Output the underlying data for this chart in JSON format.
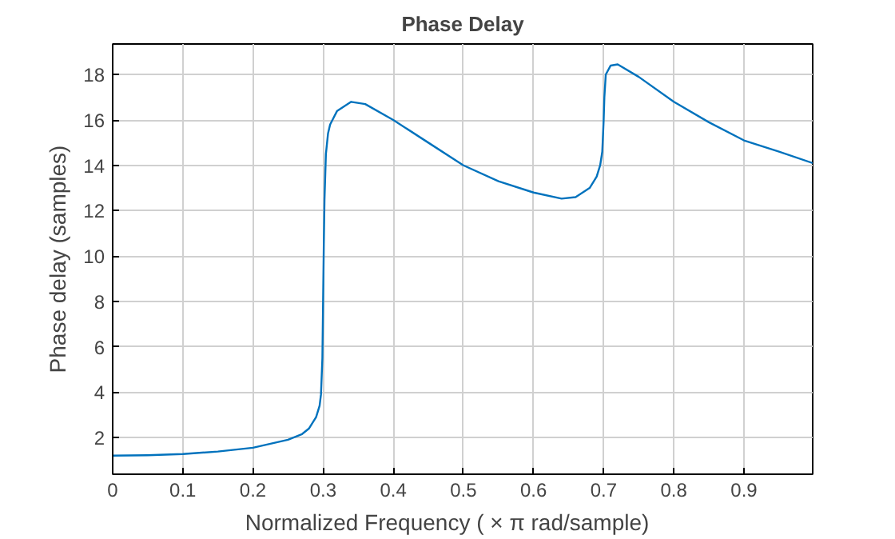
{
  "chart_data": {
    "type": "line",
    "title": "Phase Delay",
    "xlabel": "Normalized  Frequency    ( × π  rad/sample)",
    "ylabel": "Phase delay (samples)",
    "xlim": [
      0,
      0.998
    ],
    "ylim": [
      0.38,
      19.35
    ],
    "xticks": [
      0,
      0.1,
      0.2,
      0.3,
      0.4,
      0.5,
      0.6,
      0.7,
      0.8,
      0.9
    ],
    "yticks": [
      2,
      4,
      6,
      8,
      10,
      12,
      14,
      16,
      18
    ],
    "grid": true,
    "series": [
      {
        "color": "#0072bd",
        "x": [
          0,
          0.05,
          0.1,
          0.15,
          0.2,
          0.25,
          0.27,
          0.28,
          0.29,
          0.295,
          0.297,
          0.299,
          0.3,
          0.301,
          0.302,
          0.304,
          0.307,
          0.31,
          0.32,
          0.34,
          0.36,
          0.4,
          0.45,
          0.5,
          0.55,
          0.6,
          0.64,
          0.66,
          0.68,
          0.69,
          0.695,
          0.698,
          0.7,
          0.701,
          0.703,
          0.71,
          0.72,
          0.75,
          0.8,
          0.85,
          0.9,
          0.95,
          0.998
        ],
        "values": [
          1.2,
          1.22,
          1.27,
          1.38,
          1.55,
          1.9,
          2.15,
          2.4,
          2.9,
          3.4,
          3.9,
          5.5,
          8,
          10.5,
          12.5,
          14.5,
          15.4,
          15.8,
          16.4,
          16.8,
          16.7,
          16.0,
          15.0,
          14.0,
          13.3,
          12.8,
          12.53,
          12.6,
          13.0,
          13.5,
          14.0,
          14.6,
          16.0,
          17.0,
          18.0,
          18.4,
          18.45,
          17.9,
          16.8,
          15.9,
          15.1,
          14.6,
          14.1
        ]
      }
    ]
  }
}
